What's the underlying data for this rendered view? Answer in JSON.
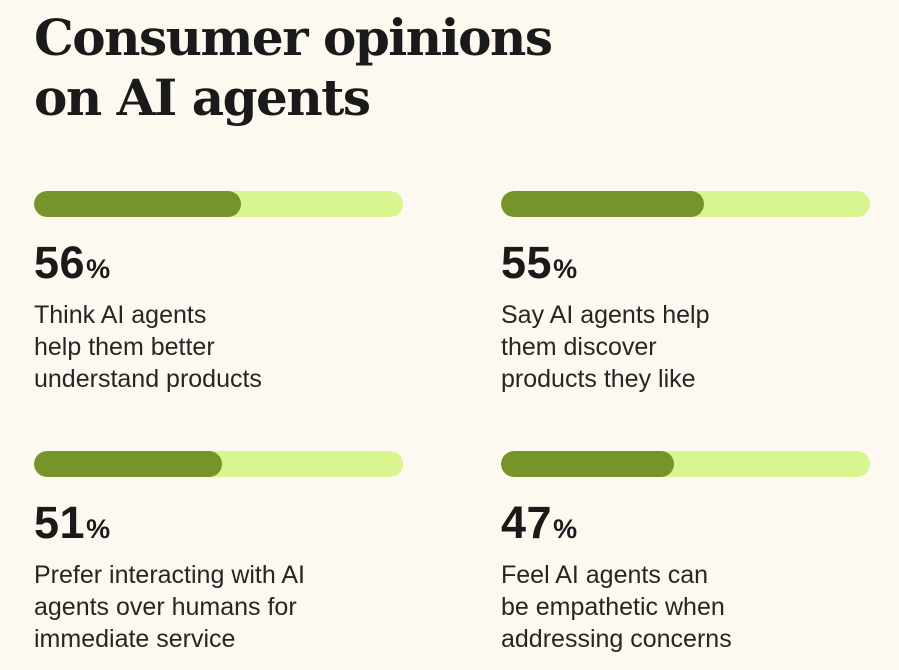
{
  "title_lines": [
    "Consumer opinions",
    "on AI agents"
  ],
  "chart_data": {
    "type": "bar",
    "title": "Consumer opinions on AI agents",
    "unit": "%",
    "ylim": [
      0,
      100
    ],
    "colors": {
      "fill": "#76942a",
      "track": "#d9f58f"
    },
    "stats": [
      {
        "value": 56,
        "value_text": "56",
        "unit_text": "%",
        "lines": [
          "Think AI agents",
          "help them better",
          "understand products"
        ]
      },
      {
        "value": 55,
        "value_text": "55",
        "unit_text": "%",
        "lines": [
          "Say AI agents help",
          "them discover",
          "products they like"
        ]
      },
      {
        "value": 51,
        "value_text": "51",
        "unit_text": "%",
        "lines": [
          "Prefer interacting with AI",
          "agents over humans for",
          "immediate service"
        ]
      },
      {
        "value": 47,
        "value_text": "47",
        "unit_text": "%",
        "lines": [
          "Feel AI agents can",
          "be empathetic when",
          "addressing concerns"
        ]
      }
    ]
  }
}
